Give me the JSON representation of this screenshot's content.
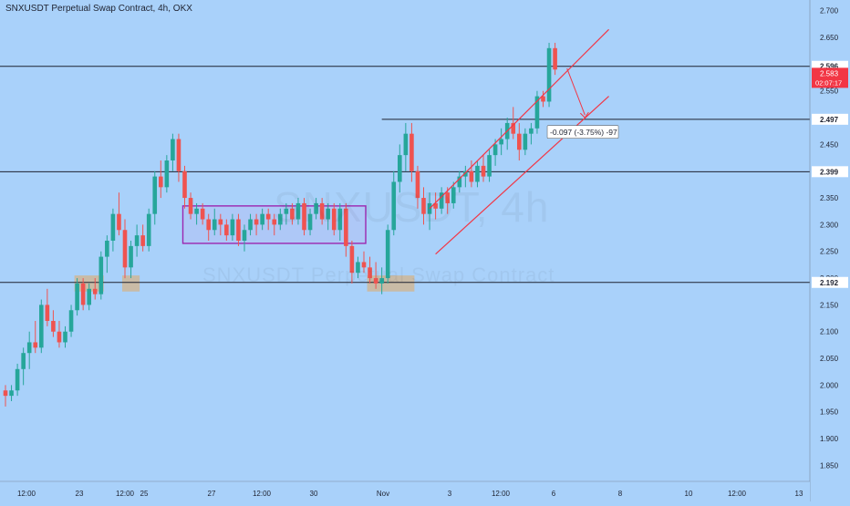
{
  "header": {
    "title": "SNXUSDT Perpetual Swap Contract, 4h, OKX"
  },
  "watermark": {
    "symbol": "SNXUSDT, 4h",
    "description": "SNXUSDT Perpetual Swap Contract"
  },
  "colors": {
    "background": "#a9d1fa",
    "up_candle": "#26a69a",
    "down_candle": "#ef5350",
    "channel": "#f23645",
    "range_box": "#9c27b0",
    "level_line": "#1e2230",
    "price_tag": "#f23645"
  },
  "chart_data": {
    "type": "candlestick",
    "title": "SNXUSDT Perpetual Swap Contract, 4h, OKX",
    "interval": "4h",
    "exchange": "OKX",
    "ylim": [
      1.82,
      2.72
    ],
    "y_ticks": [
      "2.700",
      "2.650",
      "2.600",
      "2.550",
      "2.500",
      "2.450",
      "2.400",
      "2.350",
      "2.300",
      "2.250",
      "2.200",
      "2.150",
      "2.100",
      "2.050",
      "2.000",
      "1.950",
      "1.900",
      "1.850"
    ],
    "x_ticks": [
      "12:00",
      "23",
      "12:00",
      "25",
      "27",
      "12:00",
      "30",
      "Nov",
      "3",
      "12:00",
      "6",
      "8",
      "10",
      "12:00",
      "13"
    ],
    "horizontal_levels": [
      {
        "price": 2.596,
        "label": "2.596"
      },
      {
        "price": 2.497,
        "label": "2.497"
      },
      {
        "price": 2.399,
        "label": "2.399"
      },
      {
        "price": 2.192,
        "label": "2.192"
      }
    ],
    "current_price": {
      "label": "2.583",
      "price": 2.583,
      "countdown": "02:07:17"
    },
    "measure_label": "-0.097 (-3.75%) -97",
    "candles": [
      [
        1.99,
        2.0,
        1.96,
        1.98
      ],
      [
        1.98,
        2.0,
        1.97,
        1.99
      ],
      [
        1.99,
        2.04,
        1.98,
        2.03
      ],
      [
        2.03,
        2.07,
        2.0,
        2.06
      ],
      [
        2.06,
        2.1,
        2.03,
        2.08
      ],
      [
        2.08,
        2.12,
        2.06,
        2.07
      ],
      [
        2.07,
        2.16,
        2.06,
        2.15
      ],
      [
        2.15,
        2.18,
        2.11,
        2.12
      ],
      [
        2.12,
        2.14,
        2.09,
        2.1
      ],
      [
        2.1,
        2.12,
        2.07,
        2.08
      ],
      [
        2.08,
        2.11,
        2.07,
        2.1
      ],
      [
        2.1,
        2.15,
        2.09,
        2.14
      ],
      [
        2.14,
        2.2,
        2.13,
        2.19
      ],
      [
        2.19,
        2.2,
        2.14,
        2.15
      ],
      [
        2.15,
        2.19,
        2.14,
        2.18
      ],
      [
        2.18,
        2.2,
        2.16,
        2.17
      ],
      [
        2.17,
        2.25,
        2.16,
        2.24
      ],
      [
        2.24,
        2.28,
        2.21,
        2.27
      ],
      [
        2.27,
        2.33,
        2.25,
        2.32
      ],
      [
        2.32,
        2.36,
        2.28,
        2.29
      ],
      [
        2.29,
        2.31,
        2.2,
        2.22
      ],
      [
        2.22,
        2.27,
        2.2,
        2.26
      ],
      [
        2.26,
        2.3,
        2.24,
        2.28
      ],
      [
        2.28,
        2.3,
        2.25,
        2.26
      ],
      [
        2.26,
        2.33,
        2.25,
        2.32
      ],
      [
        2.32,
        2.4,
        2.3,
        2.39
      ],
      [
        2.39,
        2.42,
        2.35,
        2.37
      ],
      [
        2.37,
        2.43,
        2.36,
        2.42
      ],
      [
        2.42,
        2.47,
        2.4,
        2.46
      ],
      [
        2.46,
        2.47,
        2.38,
        2.4
      ],
      [
        2.4,
        2.41,
        2.33,
        2.35
      ],
      [
        2.35,
        2.36,
        2.31,
        2.32
      ],
      [
        2.32,
        2.34,
        2.3,
        2.33
      ],
      [
        2.33,
        2.34,
        2.3,
        2.31
      ],
      [
        2.31,
        2.32,
        2.27,
        2.29
      ],
      [
        2.29,
        2.33,
        2.28,
        2.31
      ],
      [
        2.31,
        2.32,
        2.28,
        2.3
      ],
      [
        2.3,
        2.31,
        2.27,
        2.28
      ],
      [
        2.28,
        2.32,
        2.27,
        2.31
      ],
      [
        2.31,
        2.32,
        2.26,
        2.27
      ],
      [
        2.27,
        2.3,
        2.25,
        2.29
      ],
      [
        2.29,
        2.32,
        2.28,
        2.31
      ],
      [
        2.31,
        2.32,
        2.28,
        2.3
      ],
      [
        2.3,
        2.33,
        2.29,
        2.32
      ],
      [
        2.32,
        2.33,
        2.29,
        2.31
      ],
      [
        2.31,
        2.32,
        2.28,
        2.3
      ],
      [
        2.3,
        2.33,
        2.29,
        2.32
      ],
      [
        2.32,
        2.34,
        2.3,
        2.33
      ],
      [
        2.33,
        2.34,
        2.3,
        2.31
      ],
      [
        2.31,
        2.35,
        2.3,
        2.34
      ],
      [
        2.34,
        2.35,
        2.28,
        2.29
      ],
      [
        2.29,
        2.33,
        2.28,
        2.32
      ],
      [
        2.32,
        2.35,
        2.31,
        2.34
      ],
      [
        2.34,
        2.35,
        2.3,
        2.31
      ],
      [
        2.31,
        2.34,
        2.29,
        2.33
      ],
      [
        2.33,
        2.34,
        2.28,
        2.29
      ],
      [
        2.29,
        2.34,
        2.27,
        2.33
      ],
      [
        2.33,
        2.34,
        2.24,
        2.26
      ],
      [
        2.26,
        2.27,
        2.19,
        2.21
      ],
      [
        2.21,
        2.24,
        2.2,
        2.23
      ],
      [
        2.23,
        2.25,
        2.21,
        2.22
      ],
      [
        2.22,
        2.24,
        2.19,
        2.2
      ],
      [
        2.2,
        2.23,
        2.18,
        2.19
      ],
      [
        2.19,
        2.22,
        2.17,
        2.2
      ],
      [
        2.2,
        2.3,
        2.19,
        2.29
      ],
      [
        2.29,
        2.4,
        2.28,
        2.38
      ],
      [
        2.38,
        2.45,
        2.36,
        2.43
      ],
      [
        2.43,
        2.49,
        2.4,
        2.47
      ],
      [
        2.47,
        2.49,
        2.38,
        2.4
      ],
      [
        2.4,
        2.41,
        2.33,
        2.35
      ],
      [
        2.35,
        2.37,
        2.3,
        2.32
      ],
      [
        2.32,
        2.36,
        2.29,
        2.34
      ],
      [
        2.34,
        2.36,
        2.31,
        2.33
      ],
      [
        2.33,
        2.37,
        2.32,
        2.36
      ],
      [
        2.36,
        2.37,
        2.32,
        2.34
      ],
      [
        2.34,
        2.38,
        2.33,
        2.37
      ],
      [
        2.37,
        2.4,
        2.36,
        2.39
      ],
      [
        2.39,
        2.41,
        2.37,
        2.4
      ],
      [
        2.4,
        2.42,
        2.37,
        2.38
      ],
      [
        2.38,
        2.42,
        2.37,
        2.41
      ],
      [
        2.41,
        2.43,
        2.38,
        2.39
      ],
      [
        2.39,
        2.44,
        2.38,
        2.43
      ],
      [
        2.43,
        2.46,
        2.41,
        2.45
      ],
      [
        2.45,
        2.48,
        2.43,
        2.46
      ],
      [
        2.46,
        2.5,
        2.44,
        2.49
      ],
      [
        2.49,
        2.52,
        2.46,
        2.47
      ],
      [
        2.47,
        2.49,
        2.42,
        2.44
      ],
      [
        2.44,
        2.48,
        2.43,
        2.47
      ],
      [
        2.47,
        2.49,
        2.45,
        2.48
      ],
      [
        2.48,
        2.55,
        2.47,
        2.54
      ],
      [
        2.54,
        2.55,
        2.52,
        2.53
      ],
      [
        2.53,
        2.64,
        2.52,
        2.63
      ],
      [
        2.63,
        2.64,
        2.58,
        2.59
      ]
    ]
  }
}
